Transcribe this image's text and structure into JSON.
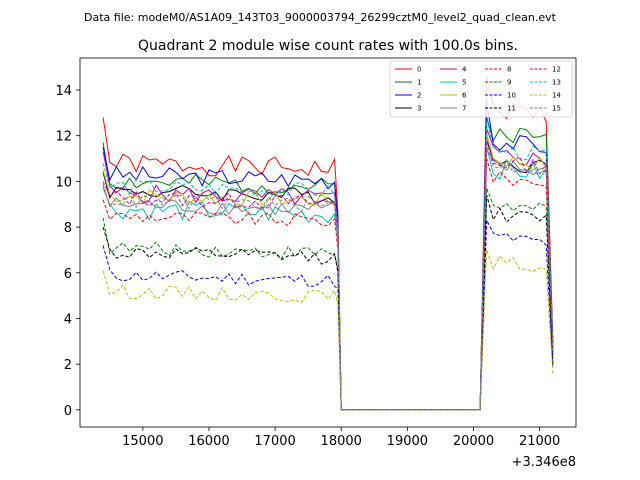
{
  "header": {
    "data_file": "Data file: modeM0/AS1A09_143T03_9000003794_26299cztM0_level2_quad_clean.evt"
  },
  "chart_data": {
    "type": "line",
    "title": "Quadrant 2 module wise count rates with 100.0s bins.",
    "xlabel": "",
    "ylabel": "",
    "x_offset_label": "+3.346e8",
    "xlim": [
      14050,
      21550
    ],
    "ylim": [
      -0.75,
      15.4
    ],
    "x_ticks": [
      15000,
      16000,
      17000,
      18000,
      19000,
      20000,
      21000
    ],
    "y_ticks": [
      0,
      2,
      4,
      6,
      8,
      10,
      12,
      14
    ],
    "x_tick_labels": [
      "15000",
      "16000",
      "17000",
      "18000",
      "19000",
      "20000",
      "21000"
    ],
    "y_tick_labels": [
      "0",
      "2",
      "4",
      "6",
      "8",
      "10",
      "12",
      "14"
    ],
    "segments": [
      {
        "x_start": 14400,
        "x_end": 17900,
        "n": 36,
        "after_x": 17950,
        "zero_x": [
          18000,
          20100
        ]
      },
      {
        "x_start": 20200,
        "x_end": 21100,
        "n": 10,
        "last_x": 21200
      }
    ],
    "legend": {
      "position": "top-right",
      "columns": 4
    },
    "series": [
      {
        "name": "0",
        "color": "#ff0000",
        "dash": "solid",
        "base1": 10.8,
        "amp": 0.45,
        "seed": 1,
        "first": 12.8,
        "mid_drop": 8.6,
        "base2": 13.2,
        "peak": 14.6,
        "last": 3.0
      },
      {
        "name": "1",
        "color": "#008000",
        "dash": "solid",
        "base1": 10.0,
        "amp": 0.4,
        "seed": 2,
        "first": 11.7,
        "mid_drop": 8.0,
        "base2": 12.2,
        "peak": 12.8,
        "last": 2.6
      },
      {
        "name": "2",
        "color": "#0000ff",
        "dash": "solid",
        "base1": 10.3,
        "amp": 0.4,
        "seed": 3,
        "first": 11.5,
        "mid_drop": 8.3,
        "base2": 11.8,
        "peak": 13.5,
        "last": 2.8
      },
      {
        "name": "3",
        "color": "#000000",
        "dash": "solid",
        "base1": 9.6,
        "amp": 0.35,
        "seed": 4,
        "first": 10.4,
        "mid_drop": 7.8,
        "base2": 10.9,
        "peak": 11.8,
        "last": 2.5
      },
      {
        "name": "4",
        "color": "#bf00bf",
        "dash": "solid",
        "base1": 9.5,
        "amp": 0.4,
        "seed": 5,
        "first": 11.3,
        "mid_drop": 7.9,
        "base2": 11.2,
        "peak": 12.3,
        "last": 2.6
      },
      {
        "name": "5",
        "color": "#00bfbf",
        "dash": "solid",
        "base1": 8.8,
        "amp": 0.45,
        "seed": 6,
        "first": 9.7,
        "mid_drop": 7.5,
        "base2": 10.6,
        "peak": 11.5,
        "last": 2.4
      },
      {
        "name": "6",
        "color": "#bfbf00",
        "dash": "solid",
        "base1": 9.4,
        "amp": 0.35,
        "seed": 7,
        "first": 10.5,
        "mid_drop": 7.8,
        "base2": 11.0,
        "peak": 12.1,
        "last": 2.5
      },
      {
        "name": "7",
        "color": "#808080",
        "dash": "solid",
        "base1": 9.0,
        "amp": 0.35,
        "seed": 8,
        "first": 9.8,
        "mid_drop": 7.6,
        "base2": 10.7,
        "peak": 11.4,
        "last": 2.4
      },
      {
        "name": "8",
        "color": "#ff0000",
        "dash": "dashed",
        "base1": 8.5,
        "amp": 0.3,
        "seed": 9,
        "first": 9.2,
        "mid_drop": 7.0,
        "base2": 10.2,
        "peak": 11.0,
        "last": 2.3
      },
      {
        "name": "9",
        "color": "#008000",
        "dash": "dashed",
        "base1": 7.1,
        "amp": 0.3,
        "seed": 10,
        "first": 8.4,
        "mid_drop": 6.2,
        "base2": 9.0,
        "peak": 9.7,
        "last": 2.0
      },
      {
        "name": "10",
        "color": "#0000ff",
        "dash": "dashed",
        "base1": 5.9,
        "amp": 0.3,
        "seed": 11,
        "first": 7.2,
        "mid_drop": 5.3,
        "base2": 7.6,
        "peak": 8.3,
        "last": 1.8
      },
      {
        "name": "11",
        "color": "#000000",
        "dash": "dashed",
        "base1": 6.9,
        "amp": 0.3,
        "seed": 12,
        "first": 8.0,
        "mid_drop": 6.0,
        "base2": 8.6,
        "peak": 9.4,
        "last": 2.0
      },
      {
        "name": "12",
        "color": "#bf00bf",
        "dash": "dashed",
        "base1": 9.3,
        "amp": 0.35,
        "seed": 13,
        "first": 10.0,
        "mid_drop": 7.7,
        "base2": 10.9,
        "peak": 11.9,
        "last": 2.5
      },
      {
        "name": "13",
        "color": "#00bfbf",
        "dash": "dashed",
        "base1": 9.8,
        "amp": 0.35,
        "seed": 14,
        "first": 10.8,
        "mid_drop": 7.9,
        "base2": 11.4,
        "peak": 12.7,
        "last": 2.6
      },
      {
        "name": "14",
        "color": "#bfbf00",
        "dash": "dashed",
        "base1": 5.2,
        "amp": 0.3,
        "seed": 15,
        "first": 6.1,
        "mid_drop": 4.6,
        "base2": 6.5,
        "peak": 7.0,
        "last": 1.6
      },
      {
        "name": "15",
        "color": "#808080",
        "dash": "dashed",
        "base1": 9.2,
        "amp": 0.35,
        "seed": 16,
        "first": 9.9,
        "mid_drop": 7.6,
        "base2": 10.8,
        "peak": 11.7,
        "last": 2.5
      }
    ]
  }
}
